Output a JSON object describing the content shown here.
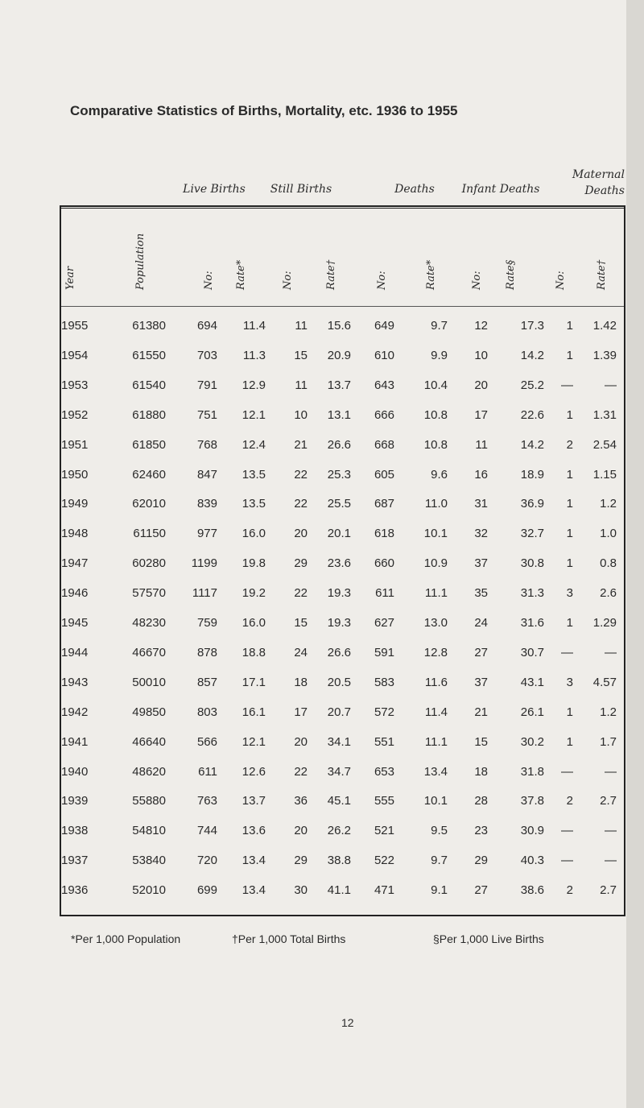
{
  "title": "Comparative Statistics of Births, Mortality, etc. 1936 to 1955",
  "table": {
    "group_headers": [
      "Live Births",
      "Still Births",
      "Deaths",
      "Infant Deaths",
      "Maternal Deaths"
    ],
    "column_headers": [
      "Year",
      "Population",
      "No:",
      "Rate*",
      "No:",
      "Rate†",
      "No:",
      "Rate*",
      "No:",
      "Rate§",
      "No:",
      "Rate†"
    ],
    "rows": [
      [
        "1955",
        "61380",
        "694",
        "11.4",
        "11",
        "15.6",
        "649",
        "9.7",
        "12",
        "17.3",
        "1",
        "1.42"
      ],
      [
        "1954",
        "61550",
        "703",
        "11.3",
        "15",
        "20.9",
        "610",
        "9.9",
        "10",
        "14.2",
        "1",
        "1.39"
      ],
      [
        "1953",
        "61540",
        "791",
        "12.9",
        "11",
        "13.7",
        "643",
        "10.4",
        "20",
        "25.2",
        "—",
        "—"
      ],
      [
        "1952",
        "61880",
        "751",
        "12.1",
        "10",
        "13.1",
        "666",
        "10.8",
        "17",
        "22.6",
        "1",
        "1.31"
      ],
      [
        "1951",
        "61850",
        "768",
        "12.4",
        "21",
        "26.6",
        "668",
        "10.8",
        "11",
        "14.2",
        "2",
        "2.54"
      ],
      [
        "1950",
        "62460",
        "847",
        "13.5",
        "22",
        "25.3",
        "605",
        "9.6",
        "16",
        "18.9",
        "1",
        "1.15"
      ],
      [
        "1949",
        "62010",
        "839",
        "13.5",
        "22",
        "25.5",
        "687",
        "11.0",
        "31",
        "36.9",
        "1",
        "1.2"
      ],
      [
        "1948",
        "61150",
        "977",
        "16.0",
        "20",
        "20.1",
        "618",
        "10.1",
        "32",
        "32.7",
        "1",
        "1.0"
      ],
      [
        "1947",
        "60280",
        "1199",
        "19.8",
        "29",
        "23.6",
        "660",
        "10.9",
        "37",
        "30.8",
        "1",
        "0.8"
      ],
      [
        "1946",
        "57570",
        "1117",
        "19.2",
        "22",
        "19.3",
        "611",
        "11.1",
        "35",
        "31.3",
        "3",
        "2.6"
      ],
      [
        "1945",
        "48230",
        "759",
        "16.0",
        "15",
        "19.3",
        "627",
        "13.0",
        "24",
        "31.6",
        "1",
        "1.29"
      ],
      [
        "1944",
        "46670",
        "878",
        "18.8",
        "24",
        "26.6",
        "591",
        "12.8",
        "27",
        "30.7",
        "—",
        "—"
      ],
      [
        "1943",
        "50010",
        "857",
        "17.1",
        "18",
        "20.5",
        "583",
        "11.6",
        "37",
        "43.1",
        "3",
        "4.57"
      ],
      [
        "1942",
        "49850",
        "803",
        "16.1",
        "17",
        "20.7",
        "572",
        "11.4",
        "21",
        "26.1",
        "1",
        "1.2"
      ],
      [
        "1941",
        "46640",
        "566",
        "12.1",
        "20",
        "34.1",
        "551",
        "11.1",
        "15",
        "30.2",
        "1",
        "1.7"
      ],
      [
        "1940",
        "48620",
        "611",
        "12.6",
        "22",
        "34.7",
        "653",
        "13.4",
        "18",
        "31.8",
        "—",
        "—"
      ],
      [
        "1939",
        "55880",
        "763",
        "13.7",
        "36",
        "45.1",
        "555",
        "10.1",
        "28",
        "37.8",
        "2",
        "2.7"
      ],
      [
        "1938",
        "54810",
        "744",
        "13.6",
        "20",
        "26.2",
        "521",
        "9.5",
        "23",
        "30.9",
        "—",
        "—"
      ],
      [
        "1937",
        "53840",
        "720",
        "13.4",
        "29",
        "38.8",
        "522",
        "9.7",
        "29",
        "40.3",
        "—",
        "—"
      ],
      [
        "1936",
        "52010",
        "699",
        "13.4",
        "30",
        "41.1",
        "471",
        "9.1",
        "27",
        "38.6",
        "2",
        "2.7"
      ]
    ]
  },
  "footnotes": [
    "*Per 1,000 Population",
    "†Per 1,000 Total Births",
    "§Per 1,000 Live Births"
  ],
  "page_number": "12"
}
